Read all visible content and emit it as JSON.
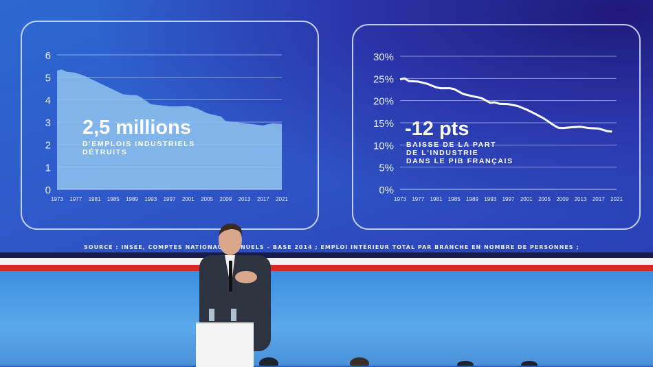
{
  "chart_data": [
    {
      "type": "area",
      "title": "",
      "xlabel": "",
      "ylabel": "",
      "ylim": [
        0,
        6
      ],
      "xlim": [
        1973,
        2021
      ],
      "grid": true,
      "yticks": [
        "0",
        "1",
        "2",
        "3",
        "4",
        "5",
        "6"
      ],
      "xticks": [
        "1973",
        "1977",
        "1981",
        "1985",
        "1989",
        "1993",
        "1997",
        "2001",
        "2005",
        "2009",
        "2013",
        "2017",
        "2021"
      ],
      "x": [
        1973,
        1974,
        1975,
        1977,
        1979,
        1981,
        1983,
        1985,
        1987,
        1989,
        1990,
        1991,
        1993,
        1995,
        1997,
        1999,
        2001,
        2003,
        2005,
        2007,
        2008,
        2009,
        2011,
        2013,
        2015,
        2017,
        2018,
        2019,
        2021
      ],
      "values": [
        5.3,
        5.35,
        5.25,
        5.2,
        5.05,
        4.85,
        4.65,
        4.45,
        4.25,
        4.2,
        4.2,
        4.1,
        3.8,
        3.75,
        3.7,
        3.7,
        3.72,
        3.6,
        3.4,
        3.3,
        3.25,
        3.05,
        3.0,
        2.95,
        2.9,
        2.85,
        2.9,
        2.95,
        2.92
      ],
      "headline": "2,5 millions",
      "caption": [
        "D'EMPLOIS INDUSTRIELS",
        "DÉTRUITS"
      ],
      "color": "#8fc4ee"
    },
    {
      "type": "line",
      "title": "",
      "xlabel": "",
      "ylabel": "",
      "ylim": [
        0,
        30
      ],
      "xlim": [
        1973,
        2021
      ],
      "grid": true,
      "yticks": [
        "0%",
        "5%",
        "10%",
        "15%",
        "20%",
        "25%",
        "30%"
      ],
      "xticks": [
        "1973",
        "1977",
        "1981",
        "1985",
        "1989",
        "1993",
        "1997",
        "2001",
        "2005",
        "2009",
        "2013",
        "2017",
        "2021"
      ],
      "x": [
        1973,
        1974,
        1975,
        1977,
        1979,
        1981,
        1982,
        1984,
        1985,
        1987,
        1989,
        1991,
        1993,
        1994,
        1995,
        1997,
        1999,
        2001,
        2003,
        2005,
        2007,
        2008,
        2009,
        2011,
        2013,
        2015,
        2017,
        2018,
        2019,
        2020
      ],
      "values": [
        24.8,
        25,
        24.4,
        24.3,
        23.8,
        23,
        22.8,
        22.8,
        22.6,
        21.5,
        21,
        20.6,
        19.5,
        19.6,
        19.3,
        19.2,
        18.8,
        18,
        17,
        15.9,
        14.5,
        13.9,
        13.8,
        14,
        14.1,
        13.8,
        13.7,
        13.4,
        13.1,
        13.0
      ],
      "headline": "-12 pts",
      "caption": [
        "BAISSE DE LA PART",
        "DE L'INDUSTRIE",
        "DANS LE PIB FRANÇAIS"
      ],
      "color": "#ffffff"
    }
  ],
  "source": "SOURCE : INSEE, COMPTES NATIONAUX ANNUELS – BASE 2014 ; EMPLOI INTÉRIEUR TOTAL PAR BRANCHE EN NOMBRE DE PERSONNES ;",
  "colors": {
    "flag_red": "#d8282a",
    "flag_white": "#f2f2f2",
    "screen_blue": "#2f5acb"
  }
}
